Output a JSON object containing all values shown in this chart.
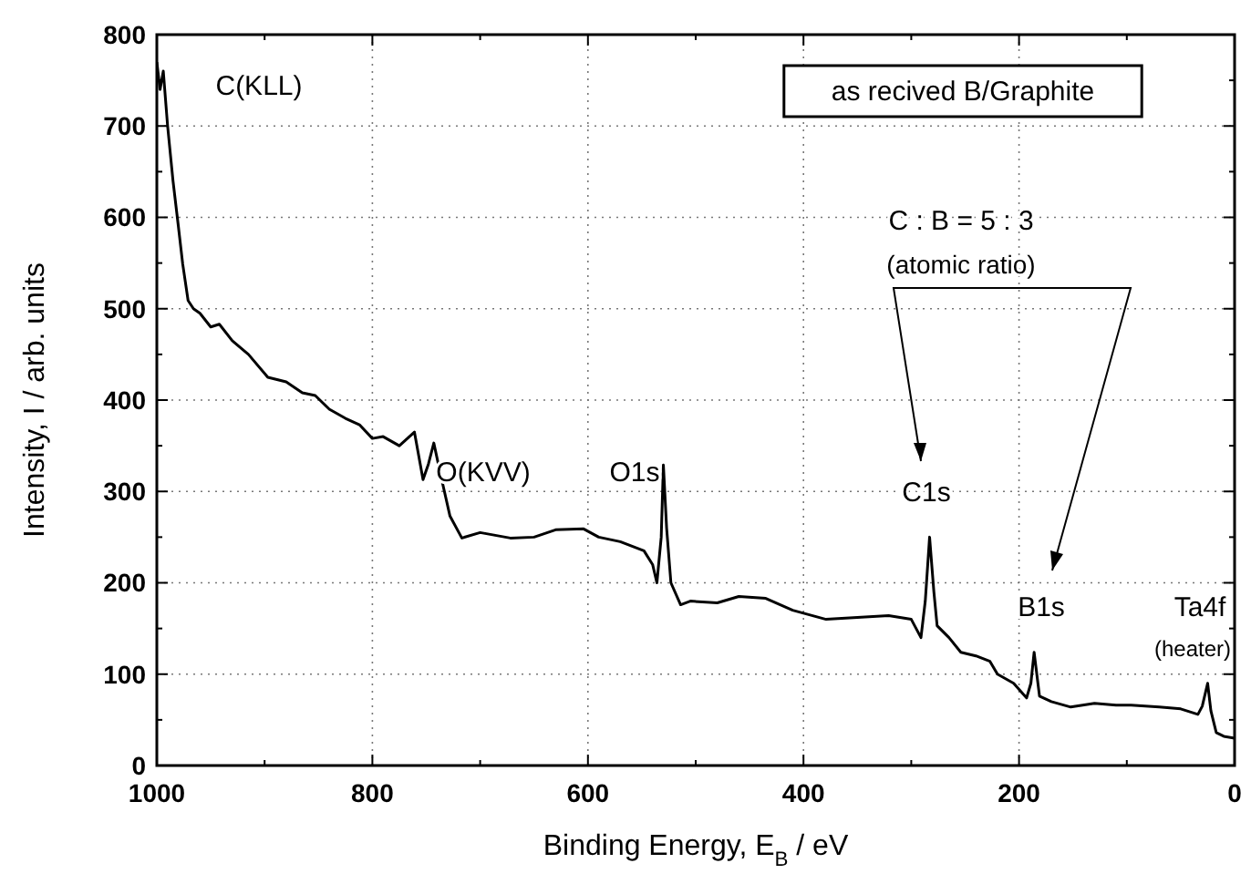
{
  "chart_data": {
    "type": "line",
    "xlabel": "Binding Energy, E$_{B}$ / eV",
    "ylabel": "Intensity, I / arb. units",
    "xlim": [
      1000,
      0
    ],
    "xticks": [
      1000,
      {
        "value": 900,
        "label": null
      },
      800,
      {
        "value": 700,
        "label": null
      },
      600,
      {
        "value": 500,
        "label": null
      },
      400,
      {
        "value": 300,
        "label": null
      },
      200,
      {
        "value": 100,
        "label": null
      },
      0
    ],
    "ylim": [
      0,
      800
    ],
    "yticks": [
      0,
      {
        "value": 50,
        "label": null
      },
      100,
      {
        "value": 150,
        "label": null
      },
      200,
      {
        "value": 250,
        "label": null
      },
      300,
      {
        "value": 350,
        "label": null
      },
      400,
      {
        "value": 450,
        "label": null
      },
      500,
      {
        "value": 550,
        "label": null
      },
      600,
      {
        "value": 650,
        "label": null
      },
      700,
      {
        "value": 750,
        "label": null
      },
      800
    ],
    "grid": true,
    "series": [
      {
        "color": "#000000",
        "x": [
          1000,
          997,
          994,
          990,
          985,
          980,
          976,
          971,
          966,
          960,
          950,
          942,
          930,
          915,
          897,
          880,
          865,
          853,
          840,
          825,
          812,
          800,
          790,
          775,
          761,
          753,
          748,
          743,
          737,
          728,
          717,
          700,
          672,
          650,
          630,
          604,
          590,
          570,
          548,
          540,
          536,
          532,
          530,
          527,
          523,
          514,
          505,
          480,
          460,
          435,
          410,
          379,
          350,
          321,
          300,
          291,
          287,
          283,
          279,
          276,
          265,
          254,
          240,
          227,
          220,
          205,
          193,
          189,
          186,
          183,
          181,
          170,
          152,
          130,
          110,
          96,
          70,
          50,
          34,
          30,
          27,
          25,
          22,
          17,
          10,
          0
        ],
        "values": [
          770,
          740,
          760,
          700,
          640,
          590,
          549,
          509,
          500,
          495,
          480,
          483,
          465,
          450,
          425,
          420,
          408,
          405,
          390,
          380,
          373,
          358,
          360,
          350,
          365,
          313,
          330,
          353,
          320,
          273,
          249,
          255,
          249,
          250,
          258,
          259,
          250,
          245,
          235,
          220,
          200,
          250,
          329,
          260,
          200,
          176,
          180,
          178,
          185,
          183,
          170,
          160,
          162,
          164,
          160,
          140,
          180,
          250,
          190,
          153,
          140,
          124,
          120,
          114,
          100,
          90,
          74,
          90,
          124,
          95,
          76,
          70,
          64,
          68,
          66,
          66,
          64,
          62,
          56,
          65,
          80,
          90,
          60,
          36,
          32,
          30
        ]
      }
    ],
    "annotations": [
      "as recived B/Graphite",
      "C : B = 5 : 3",
      "(atomic ratio)",
      "C(KLL)",
      "O(KVV)",
      "O1s",
      "C1s",
      "B1s",
      "Ta4f",
      "(heater)"
    ]
  }
}
